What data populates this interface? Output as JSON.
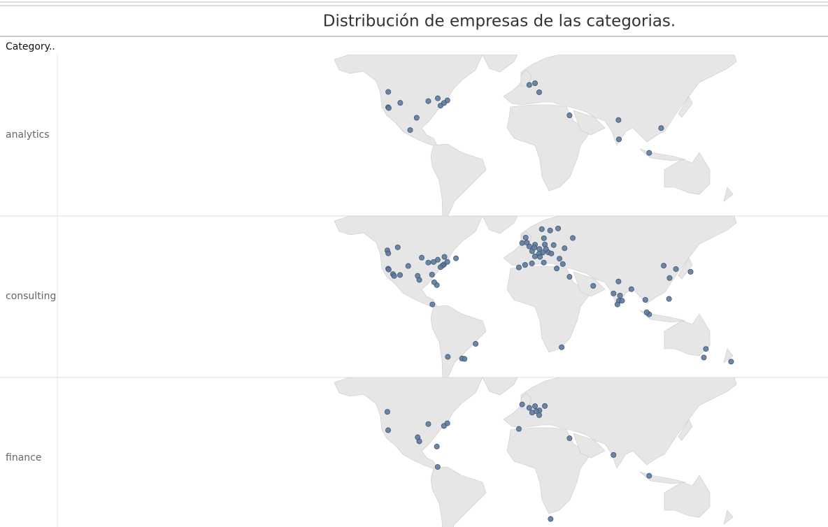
{
  "map": {
    "title": "Distribución de empresas de las categorias.",
    "row_header": "Category..",
    "marker_color": "#5d7a9f",
    "panels": [
      {
        "category": "analytics",
        "lon": [
          -122.3,
          -122.4,
          -121.9,
          -111.9,
          -103.3,
          -97.7,
          -87.6,
          -79.4,
          -77.0,
          -74.0,
          -71.0,
          -0.1,
          4.9,
          8.5,
          34.8,
          77.2,
          77.6,
          103.8,
          114.2
        ],
        "lat": [
          47.6,
          37.8,
          37.3,
          40.8,
          20.7,
          30.3,
          41.9,
          43.7,
          38.9,
          40.7,
          42.4,
          51.5,
          52.4,
          47.4,
          32.1,
          28.6,
          13.0,
          1.4,
          22.3
        ]
      },
      {
        "category": "consulting",
        "lon": [
          -123.1,
          -122.3,
          -122.4,
          -121.9,
          -118.2,
          -117.2,
          -105.0,
          -112.1,
          -114.1,
          -96.8,
          -95.4,
          -93.3,
          -87.6,
          -83.0,
          -79.4,
          -73.6,
          -74.0,
          -71.1,
          -75.2,
          -77.0,
          -84.4,
          -80.2,
          -82.5,
          -63.6,
          -84.1,
          -46.6,
          -70.7,
          -58.4,
          -56.2,
          -0.1,
          2.35,
          4.9,
          4.35,
          8.7,
          13.4,
          11.6,
          8.5,
          16.4,
          9.2,
          -3.7,
          2.2,
          -9.1,
          -6.3,
          12.6,
          18.0,
          10.75,
          24.9,
          21.0,
          14.4,
          19.0,
          26.1,
          23.7,
          29.0,
          37.6,
          30.5,
          12.5,
          4.8,
          -3.2,
          -2.2,
          55.3,
          34.8,
          72.9,
          77.6,
          80.3,
          78.5,
          77.2,
          88.4,
          76.3,
          100.5,
          103.8,
          101.7,
          121.0,
          121.5,
          116.4,
          127.0,
          139.7,
          151.2,
          153.0,
          174.8,
          28.0
        ],
        "lat": [
          49.3,
          47.6,
          37.8,
          37.3,
          34.0,
          32.7,
          39.7,
          33.4,
          51.0,
          32.8,
          29.8,
          45.0,
          41.9,
          42.3,
          43.7,
          45.5,
          40.7,
          42.4,
          40.0,
          38.9,
          33.7,
          25.8,
          28.0,
          44.6,
          9.9,
          -23.5,
          -33.4,
          -34.6,
          -34.9,
          51.5,
          48.9,
          52.4,
          50.9,
          50.1,
          52.5,
          48.1,
          47.4,
          48.2,
          45.5,
          40.4,
          41.4,
          38.7,
          53.3,
          55.7,
          59.3,
          59.9,
          60.2,
          52.2,
          50.1,
          47.5,
          44.4,
          38.0,
          41.0,
          55.8,
          50.5,
          41.9,
          45.8,
          56.0,
          53.5,
          25.2,
          32.1,
          19.1,
          13.0,
          13.1,
          17.4,
          28.6,
          22.6,
          9.9,
          13.8,
          1.4,
          3.1,
          14.6,
          31.2,
          39.9,
          37.6,
          35.7,
          -33.9,
          -27.5,
          -36.8,
          -26.2
        ]
      },
      {
        "category": "finance",
        "lon": [
          -123.1,
          -122.4,
          -87.6,
          -74.0,
          -71.1,
          -96.8,
          -95.4,
          -80.2,
          -79.5,
          -6.3,
          -0.1,
          4.9,
          2.35,
          8.7,
          8.5,
          13.4,
          6.1,
          -9.1,
          34.8,
          72.9,
          103.8,
          18.4
        ],
        "lat": [
          49.3,
          37.8,
          41.9,
          40.7,
          42.4,
          32.8,
          29.8,
          25.8,
          9.0,
          53.3,
          51.5,
          52.4,
          48.9,
          50.1,
          47.4,
          52.5,
          49.6,
          38.7,
          32.1,
          19.1,
          1.4,
          -33.9
        ]
      }
    ]
  }
}
